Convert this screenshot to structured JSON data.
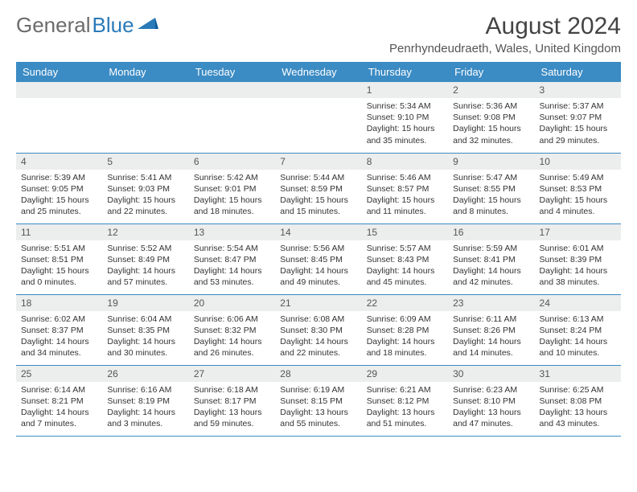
{
  "brand": {
    "part1": "General",
    "part2": "Blue"
  },
  "title": "August 2024",
  "location": "Penrhyndeudraeth, Wales, United Kingdom",
  "colors": {
    "header_bg": "#3b8bc4",
    "header_fg": "#ffffff",
    "daynum_bg": "#eceded",
    "rule": "#3b8bc4",
    "brand_gray": "#6b6b6b",
    "brand_blue": "#2a7ab8"
  },
  "weekdays": [
    "Sunday",
    "Monday",
    "Tuesday",
    "Wednesday",
    "Thursday",
    "Friday",
    "Saturday"
  ],
  "weeks": [
    [
      null,
      null,
      null,
      null,
      {
        "n": "1",
        "sr": "5:34 AM",
        "ss": "9:10 PM",
        "dl": "15 hours and 35 minutes."
      },
      {
        "n": "2",
        "sr": "5:36 AM",
        "ss": "9:08 PM",
        "dl": "15 hours and 32 minutes."
      },
      {
        "n": "3",
        "sr": "5:37 AM",
        "ss": "9:07 PM",
        "dl": "15 hours and 29 minutes."
      }
    ],
    [
      {
        "n": "4",
        "sr": "5:39 AM",
        "ss": "9:05 PM",
        "dl": "15 hours and 25 minutes."
      },
      {
        "n": "5",
        "sr": "5:41 AM",
        "ss": "9:03 PM",
        "dl": "15 hours and 22 minutes."
      },
      {
        "n": "6",
        "sr": "5:42 AM",
        "ss": "9:01 PM",
        "dl": "15 hours and 18 minutes."
      },
      {
        "n": "7",
        "sr": "5:44 AM",
        "ss": "8:59 PM",
        "dl": "15 hours and 15 minutes."
      },
      {
        "n": "8",
        "sr": "5:46 AM",
        "ss": "8:57 PM",
        "dl": "15 hours and 11 minutes."
      },
      {
        "n": "9",
        "sr": "5:47 AM",
        "ss": "8:55 PM",
        "dl": "15 hours and 8 minutes."
      },
      {
        "n": "10",
        "sr": "5:49 AM",
        "ss": "8:53 PM",
        "dl": "15 hours and 4 minutes."
      }
    ],
    [
      {
        "n": "11",
        "sr": "5:51 AM",
        "ss": "8:51 PM",
        "dl": "15 hours and 0 minutes."
      },
      {
        "n": "12",
        "sr": "5:52 AM",
        "ss": "8:49 PM",
        "dl": "14 hours and 57 minutes."
      },
      {
        "n": "13",
        "sr": "5:54 AM",
        "ss": "8:47 PM",
        "dl": "14 hours and 53 minutes."
      },
      {
        "n": "14",
        "sr": "5:56 AM",
        "ss": "8:45 PM",
        "dl": "14 hours and 49 minutes."
      },
      {
        "n": "15",
        "sr": "5:57 AM",
        "ss": "8:43 PM",
        "dl": "14 hours and 45 minutes."
      },
      {
        "n": "16",
        "sr": "5:59 AM",
        "ss": "8:41 PM",
        "dl": "14 hours and 42 minutes."
      },
      {
        "n": "17",
        "sr": "6:01 AM",
        "ss": "8:39 PM",
        "dl": "14 hours and 38 minutes."
      }
    ],
    [
      {
        "n": "18",
        "sr": "6:02 AM",
        "ss": "8:37 PM",
        "dl": "14 hours and 34 minutes."
      },
      {
        "n": "19",
        "sr": "6:04 AM",
        "ss": "8:35 PM",
        "dl": "14 hours and 30 minutes."
      },
      {
        "n": "20",
        "sr": "6:06 AM",
        "ss": "8:32 PM",
        "dl": "14 hours and 26 minutes."
      },
      {
        "n": "21",
        "sr": "6:08 AM",
        "ss": "8:30 PM",
        "dl": "14 hours and 22 minutes."
      },
      {
        "n": "22",
        "sr": "6:09 AM",
        "ss": "8:28 PM",
        "dl": "14 hours and 18 minutes."
      },
      {
        "n": "23",
        "sr": "6:11 AM",
        "ss": "8:26 PM",
        "dl": "14 hours and 14 minutes."
      },
      {
        "n": "24",
        "sr": "6:13 AM",
        "ss": "8:24 PM",
        "dl": "14 hours and 10 minutes."
      }
    ],
    [
      {
        "n": "25",
        "sr": "6:14 AM",
        "ss": "8:21 PM",
        "dl": "14 hours and 7 minutes."
      },
      {
        "n": "26",
        "sr": "6:16 AM",
        "ss": "8:19 PM",
        "dl": "14 hours and 3 minutes."
      },
      {
        "n": "27",
        "sr": "6:18 AM",
        "ss": "8:17 PM",
        "dl": "13 hours and 59 minutes."
      },
      {
        "n": "28",
        "sr": "6:19 AM",
        "ss": "8:15 PM",
        "dl": "13 hours and 55 minutes."
      },
      {
        "n": "29",
        "sr": "6:21 AM",
        "ss": "8:12 PM",
        "dl": "13 hours and 51 minutes."
      },
      {
        "n": "30",
        "sr": "6:23 AM",
        "ss": "8:10 PM",
        "dl": "13 hours and 47 minutes."
      },
      {
        "n": "31",
        "sr": "6:25 AM",
        "ss": "8:08 PM",
        "dl": "13 hours and 43 minutes."
      }
    ]
  ]
}
